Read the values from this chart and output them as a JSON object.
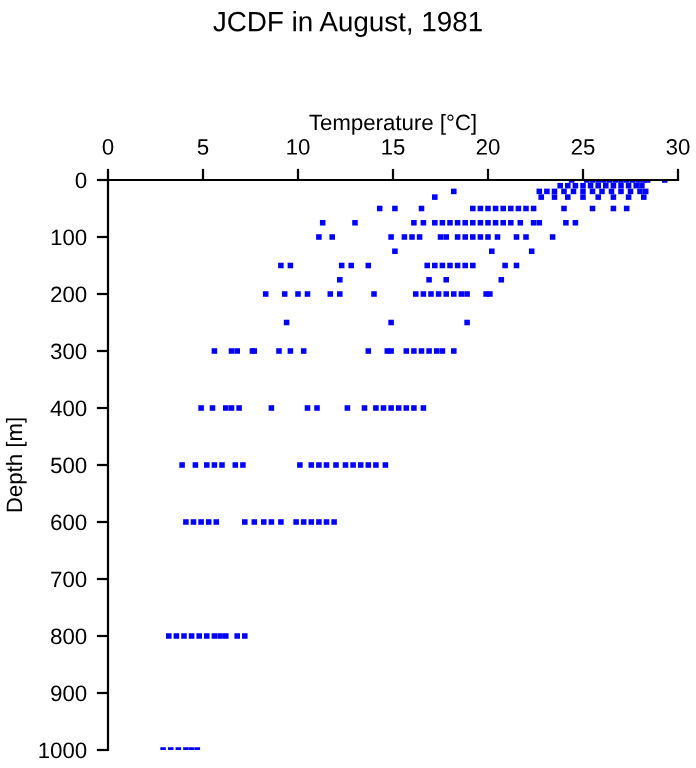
{
  "chart_data": {
    "type": "scatter",
    "title": "JCDF in August, 1981",
    "xlabel": "Temperature [°C]",
    "ylabel": "Depth [m]",
    "xlim": [
      0,
      30
    ],
    "xticks": [
      0,
      5,
      10,
      15,
      20,
      25,
      30
    ],
    "ylim": [
      1000,
      0
    ],
    "yticks": [
      0,
      100,
      200,
      300,
      400,
      500,
      600,
      700,
      800,
      900,
      1000
    ],
    "marker": "square",
    "grid": false,
    "legend": false,
    "series": [
      {
        "color": "#0000ff",
        "x": [
          24.4,
          25.2,
          25.5,
          25.8,
          26.1,
          26.4,
          26.7,
          27.0,
          27.3,
          27.6,
          27.9,
          28.2,
          28.4,
          29.3,
          23.8,
          24.2,
          24.6,
          25.0,
          25.4,
          25.8,
          26.2,
          26.6,
          27.0,
          27.4,
          27.8,
          28.1,
          18.2,
          22.7,
          23.1,
          23.5,
          24.0,
          24.5,
          25.0,
          25.5,
          26.0,
          26.5,
          27.0,
          27.5,
          28.0,
          28.3,
          17.2,
          22.8,
          23.5,
          24.2,
          25.0,
          25.8,
          26.6,
          27.4,
          28.2,
          14.3,
          15.1,
          16.5,
          19.2,
          19.6,
          20.0,
          20.4,
          20.8,
          21.2,
          21.6,
          22.0,
          22.4,
          24.0,
          25.5,
          26.6,
          27.3,
          11.3,
          13.0,
          16.1,
          16.6,
          17.2,
          17.6,
          18.0,
          18.4,
          18.8,
          19.2,
          19.6,
          20.0,
          20.4,
          20.8,
          21.2,
          21.7,
          22.4,
          22.7,
          24.1,
          24.6,
          11.1,
          11.8,
          14.9,
          15.6,
          16.0,
          16.4,
          17.5,
          17.8,
          18.4,
          18.8,
          19.2,
          19.6,
          20.0,
          20.5,
          21.5,
          22.0,
          23.4,
          15.1,
          20.2,
          22.3,
          9.1,
          9.6,
          12.3,
          12.8,
          13.7,
          16.8,
          17.2,
          17.6,
          18.0,
          18.4,
          18.8,
          19.2,
          20.9,
          21.5,
          12.2,
          16.9,
          17.8,
          20.7,
          8.3,
          9.3,
          10.0,
          10.5,
          11.7,
          12.2,
          14.0,
          16.2,
          16.6,
          17.0,
          17.4,
          17.8,
          18.2,
          18.6,
          18.9,
          19.9,
          20.1,
          9.4,
          14.9,
          18.9,
          5.6,
          6.5,
          6.8,
          7.6,
          7.7,
          9.0,
          9.6,
          10.3,
          13.7,
          14.7,
          14.9,
          15.7,
          16.1,
          16.5,
          16.9,
          17.3,
          17.6,
          18.2,
          4.9,
          5.5,
          6.2,
          6.5,
          6.9,
          8.6,
          10.5,
          11.0,
          12.6,
          13.5,
          14.1,
          14.5,
          14.9,
          15.3,
          15.7,
          16.1,
          16.6,
          3.9,
          4.6,
          5.2,
          5.6,
          6.0,
          6.7,
          7.1,
          10.1,
          10.7,
          11.1,
          11.5,
          12.0,
          12.5,
          12.9,
          13.3,
          13.7,
          14.1,
          14.6,
          4.1,
          4.5,
          4.9,
          5.3,
          5.7,
          7.2,
          7.7,
          8.2,
          8.6,
          9.1,
          9.9,
          10.3,
          10.7,
          11.1,
          11.5,
          11.9,
          3.2,
          3.6,
          4.0,
          4.4,
          4.8,
          5.2,
          5.6,
          5.9,
          6.2,
          6.8,
          7.2,
          2.9,
          3.3,
          3.7,
          4.1,
          4.4,
          4.7
        ],
        "values": [
          0,
          0,
          0,
          0,
          0,
          0,
          0,
          0,
          0,
          0,
          0,
          0,
          0,
          0,
          10,
          10,
          10,
          10,
          10,
          10,
          10,
          10,
          10,
          10,
          10,
          10,
          20,
          20,
          20,
          20,
          20,
          20,
          20,
          20,
          20,
          20,
          20,
          20,
          20,
          20,
          30,
          30,
          30,
          30,
          30,
          30,
          30,
          30,
          30,
          50,
          50,
          50,
          50,
          50,
          50,
          50,
          50,
          50,
          50,
          50,
          50,
          50,
          50,
          50,
          50,
          75,
          75,
          75,
          75,
          75,
          75,
          75,
          75,
          75,
          75,
          75,
          75,
          75,
          75,
          75,
          75,
          75,
          75,
          75,
          75,
          100,
          100,
          100,
          100,
          100,
          100,
          100,
          100,
          100,
          100,
          100,
          100,
          100,
          100,
          100,
          100,
          100,
          125,
          125,
          125,
          150,
          150,
          150,
          150,
          150,
          150,
          150,
          150,
          150,
          150,
          150,
          150,
          150,
          150,
          175,
          175,
          175,
          175,
          200,
          200,
          200,
          200,
          200,
          200,
          200,
          200,
          200,
          200,
          200,
          200,
          200,
          200,
          200,
          200,
          200,
          250,
          250,
          250,
          300,
          300,
          300,
          300,
          300,
          300,
          300,
          300,
          300,
          300,
          300,
          300,
          300,
          300,
          300,
          300,
          300,
          300,
          400,
          400,
          400,
          400,
          400,
          400,
          400,
          400,
          400,
          400,
          400,
          400,
          400,
          400,
          400,
          400,
          400,
          500,
          500,
          500,
          500,
          500,
          500,
          500,
          500,
          500,
          500,
          500,
          500,
          500,
          500,
          500,
          500,
          500,
          500,
          600,
          600,
          600,
          600,
          600,
          600,
          600,
          600,
          600,
          600,
          600,
          600,
          600,
          600,
          600,
          600,
          800,
          800,
          800,
          800,
          800,
          800,
          800,
          800,
          800,
          800,
          800,
          1000,
          1000,
          1000,
          1000,
          1000,
          1000
        ]
      }
    ]
  }
}
